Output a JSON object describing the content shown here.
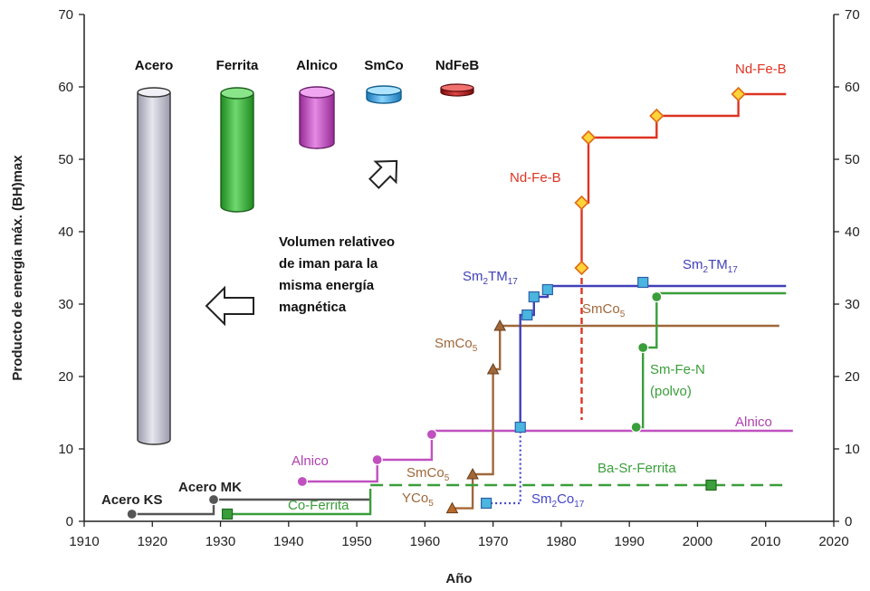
{
  "chart_data": {
    "type": "line",
    "xlabel": "Año",
    "ylabel": "Producto de energía máx. (BH)max",
    "xlim": [
      1910,
      2020
    ],
    "ylim": [
      0,
      70
    ],
    "x_ticks": [
      "1910",
      "1920",
      "1930",
      "1940",
      "1950",
      "1960",
      "1970",
      "1980",
      "1990",
      "2000",
      "2010",
      "2020"
    ],
    "y_ticks": [
      "0",
      "10",
      "20",
      "30",
      "40",
      "50",
      "60",
      "70"
    ],
    "grid": false,
    "series": [
      {
        "name": "Acero KS",
        "color": "#555555",
        "marker": "circle",
        "points": [
          [
            1917,
            1
          ]
        ],
        "step_to": [
          [
            1917,
            1
          ],
          [
            1929,
            1
          ],
          [
            1929,
            3
          ],
          [
            1952,
            3
          ]
        ]
      },
      {
        "name": "Acero MK",
        "color": "#555555",
        "marker": "circle",
        "points": [
          [
            1929,
            3
          ]
        ]
      },
      {
        "name": "Co-Ferrita",
        "color": "#3a9e3a",
        "marker": "square",
        "points": [
          [
            1931,
            1
          ]
        ],
        "step_to": [
          [
            1931,
            1
          ],
          [
            1952,
            1
          ],
          [
            1952,
            4.5
          ]
        ]
      },
      {
        "name": "Alnico",
        "color": "#c050c0",
        "marker": "circle",
        "points": [
          [
            1942,
            5.5
          ],
          [
            1953,
            8.5
          ],
          [
            1961,
            12
          ]
        ],
        "step_to": [
          [
            1942,
            5.5
          ],
          [
            1953,
            5.5
          ],
          [
            1953,
            8.5
          ],
          [
            1961,
            8.5
          ],
          [
            1961,
            12.5
          ],
          [
            2014,
            12.5
          ]
        ]
      },
      {
        "name": "YCo5",
        "color": "#b86a2a",
        "marker": "triangle",
        "points": [
          [
            1964,
            1.8
          ]
        ]
      },
      {
        "name": "SmCo5",
        "color": "#a0683a",
        "marker": "triangle",
        "points": [
          [
            1967,
            6.5
          ],
          [
            1970,
            21
          ],
          [
            1971,
            27
          ]
        ],
        "step_to": [
          [
            1964,
            1.8
          ],
          [
            1967,
            1.8
          ],
          [
            1967,
            6.5
          ],
          [
            1970,
            6.5
          ],
          [
            1970,
            21
          ],
          [
            1971,
            21
          ],
          [
            1971,
            27
          ],
          [
            2012,
            27
          ]
        ]
      },
      {
        "name": "Sm2Co17",
        "color": "#4444cc",
        "marker": "square",
        "points": [
          [
            1969,
            2.5
          ]
        ]
      },
      {
        "name": "Sm2TM17",
        "color": "#4040b8",
        "marker": "square",
        "points": [
          [
            1974,
            13
          ],
          [
            1975,
            28.5
          ],
          [
            1976,
            31
          ],
          [
            1978,
            32
          ],
          [
            1992,
            33
          ]
        ],
        "step_to": [
          [
            1974,
            13
          ],
          [
            1974,
            28.5
          ],
          [
            1976,
            28.5
          ],
          [
            1976,
            31
          ],
          [
            1978,
            31
          ],
          [
            1978,
            32.5
          ],
          [
            2013,
            32.5
          ]
        ]
      },
      {
        "name": "Nd-Fe-B",
        "color": "#dd3322",
        "marker": "diamond",
        "points": [
          [
            1983,
            35
          ],
          [
            1983,
            44
          ],
          [
            1984,
            53
          ],
          [
            1994,
            56
          ],
          [
            2006,
            59
          ]
        ],
        "step_to": [
          [
            1983,
            35
          ],
          [
            1983,
            44
          ],
          [
            1984,
            44
          ],
          [
            1984,
            53
          ],
          [
            1994,
            53
          ],
          [
            1994,
            56
          ],
          [
            2006,
            56
          ],
          [
            2006,
            59
          ],
          [
            2013,
            59
          ]
        ]
      },
      {
        "name": "Sm-Fe-N (polvo)",
        "color": "#3a9e3a",
        "marker": "circle",
        "points": [
          [
            1991,
            13
          ],
          [
            1992,
            24
          ],
          [
            1994,
            31
          ]
        ],
        "step_to": [
          [
            1991,
            13
          ],
          [
            1992,
            13
          ],
          [
            1992,
            24
          ],
          [
            1994,
            24
          ],
          [
            1994,
            31.5
          ],
          [
            2013,
            31.5
          ]
        ]
      },
      {
        "name": "Ba-Sr-Ferrita",
        "color": "#3a9e3a",
        "marker": "square",
        "points": [
          [
            2002,
            5
          ]
        ]
      }
    ],
    "magnets": [
      {
        "name": "Acero",
        "color": "#c8c8d6"
      },
      {
        "name": "Ferrita",
        "color": "#3fae3f"
      },
      {
        "name": "Alnico",
        "color": "#c64cc6"
      },
      {
        "name": "SmCo",
        "color": "#3aa6e0"
      },
      {
        "name": "NdFeB",
        "color": "#b01e1e"
      }
    ],
    "note": [
      "Volumen relativeo",
      "de iman para la",
      "misma energía",
      "magnética"
    ]
  }
}
